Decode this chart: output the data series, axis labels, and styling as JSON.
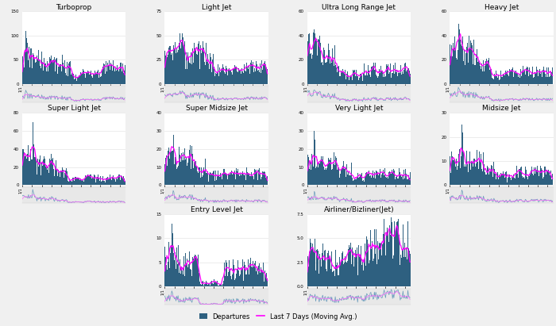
{
  "background_color": "#f0f0f0",
  "plot_bg_color": "#ffffff",
  "bar_color": "#2e6080",
  "line_color": "#ff00ff",
  "mini_bg_color": "#e8e8e8",
  "mini_line1_color": "#6699bb",
  "mini_line2_color": "#ff66ff",
  "title_fontsize": 6.5,
  "tick_fontsize": 4.0,
  "legend_fontsize": 6,
  "panels": [
    {
      "title": "Turboprop",
      "ylim": [
        0,
        150
      ],
      "yticks": [
        0,
        50,
        100,
        150
      ]
    },
    {
      "title": "Light Jet",
      "ylim": [
        0,
        75
      ],
      "yticks": [
        0,
        25,
        50,
        75
      ]
    },
    {
      "title": "Ultra Long Range Jet",
      "ylim": [
        0,
        60
      ],
      "yticks": [
        0,
        20,
        40,
        60
      ]
    },
    {
      "title": "Heavy Jet",
      "ylim": [
        0,
        60
      ],
      "yticks": [
        0,
        20,
        40,
        60
      ]
    },
    {
      "title": "Super Light Jet",
      "ylim": [
        0,
        80
      ],
      "yticks": [
        0,
        20,
        40,
        60,
        80
      ]
    },
    {
      "title": "Super Midsize Jet",
      "ylim": [
        0,
        40
      ],
      "yticks": [
        0,
        10,
        20,
        30,
        40
      ]
    },
    {
      "title": "Very Light Jet",
      "ylim": [
        0,
        40
      ],
      "yticks": [
        0,
        10,
        20,
        30,
        40
      ]
    },
    {
      "title": "Midsize Jet",
      "ylim": [
        0,
        30
      ],
      "yticks": [
        0,
        10,
        20,
        30
      ]
    },
    {
      "title": "Entry Level Jet",
      "ylim": [
        0,
        15
      ],
      "yticks": [
        0,
        5,
        10,
        15
      ]
    },
    {
      "title": "Airliner/Bizliner(Jet)",
      "ylim": [
        0,
        7.5
      ],
      "yticks": [
        0,
        2.5,
        5.0,
        7.5
      ]
    }
  ]
}
